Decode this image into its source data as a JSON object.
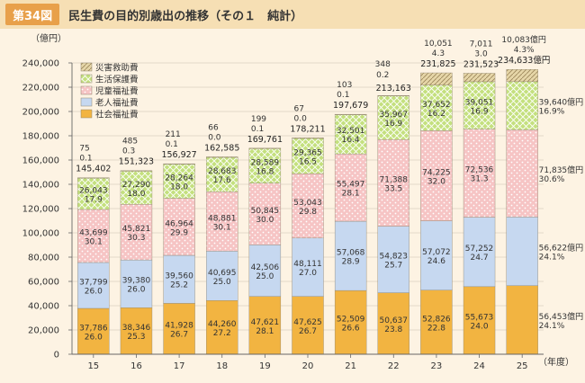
{
  "figure": {
    "badge": "第34図",
    "title": "民生費の目的別歳出の推移（その１　純計）"
  },
  "chart_data": {
    "type": "bar",
    "stacked": true,
    "y_unit_label": "（億円）",
    "x_unit_label": "（年度）",
    "ylim": [
      0,
      240000
    ],
    "yticks": [
      0,
      20000,
      40000,
      60000,
      80000,
      100000,
      120000,
      140000,
      160000,
      180000,
      200000,
      220000,
      240000
    ],
    "ytick_labels": [
      "0",
      "20,000",
      "40,000",
      "60,000",
      "80,000",
      "100,000",
      "120,000",
      "140,000",
      "160,000",
      "180,000",
      "200,000",
      "220,000",
      "240,000"
    ],
    "categories": [
      "15",
      "16",
      "17",
      "18",
      "19",
      "20",
      "21",
      "22",
      "23",
      "24",
      "25"
    ],
    "series": [
      {
        "name": "社会福祉費",
        "color": "#f2b441",
        "values": [
          37786,
          38346,
          41928,
          44260,
          47621,
          47625,
          52509,
          50637,
          52826,
          55673,
          56453
        ],
        "labels": [
          "37,786",
          "38,346",
          "41,928",
          "44,260",
          "47,621",
          "47,625",
          "52,509",
          "50,637",
          "52,826",
          "55,673",
          "56,453億円"
        ],
        "pcts": [
          "26.0",
          "25.3",
          "26.7",
          "27.2",
          "28.1",
          "26.7",
          "26.6",
          "23.8",
          "22.8",
          "24.0",
          "24.1%"
        ]
      },
      {
        "name": "老人福祉費",
        "color": "#c6d8f0",
        "values": [
          37799,
          39380,
          39560,
          40695,
          42506,
          48111,
          57068,
          54823,
          57072,
          57252,
          56622
        ],
        "labels": [
          "37,799",
          "39,380",
          "39,560",
          "40,695",
          "42,506",
          "48,111",
          "57,068",
          "54,823",
          "57,072",
          "57,252",
          "56,622億円"
        ],
        "pcts": [
          "26.0",
          "26.0",
          "25.2",
          "25.0",
          "25.0",
          "27.0",
          "28.9",
          "25.7",
          "24.6",
          "24.7",
          "24.1%"
        ]
      },
      {
        "name": "児童福祉費",
        "color": "#f6c4c4",
        "values": [
          43699,
          45821,
          46964,
          48881,
          50845,
          53043,
          55497,
          71388,
          74225,
          72536,
          71835
        ],
        "labels": [
          "43,699",
          "45,821",
          "46,964",
          "48,881",
          "50,845",
          "53,043",
          "55,497",
          "71,388",
          "74,225",
          "72,536",
          "71,835億円"
        ],
        "pcts": [
          "30.1",
          "30.3",
          "29.9",
          "30.1",
          "30.0",
          "29.8",
          "28.1",
          "33.5",
          "32.0",
          "31.3",
          "30.6%"
        ]
      },
      {
        "name": "生活保護費",
        "color": "#c4e07e",
        "values": [
          26043,
          27290,
          28264,
          28683,
          28589,
          29365,
          32501,
          35967,
          37652,
          39051,
          39640
        ],
        "labels": [
          "26,043",
          "27,290",
          "28,264",
          "28,683",
          "28,589",
          "29,365",
          "32,501",
          "35,967",
          "37,652",
          "39,051",
          "39,640億円"
        ],
        "pcts": [
          "17.9",
          "18.0",
          "18.0",
          "17.6",
          "16.8",
          "16.5",
          "16.4",
          "16.9",
          "16.2",
          "16.9",
          "16.9%"
        ]
      },
      {
        "name": "災害救助費",
        "color": "#e6d6a8",
        "values": [
          75,
          485,
          211,
          66,
          199,
          67,
          103,
          348,
          10051,
          7011,
          10083
        ],
        "labels": [
          "75",
          "485",
          "211",
          "66",
          "199",
          "67",
          "103",
          "348",
          "10,051",
          "7,011",
          "10,083億円"
        ],
        "pcts": [
          "0.1",
          "0.3",
          "0.1",
          "0.0",
          "0.1",
          "0.0",
          "0.1",
          "0.2",
          "4.3",
          "3.0",
          "4.3%"
        ]
      }
    ],
    "totals": [
      145402,
      151323,
      156927,
      162585,
      169761,
      178211,
      197679,
      213163,
      231825,
      231523,
      234633
    ],
    "total_labels": [
      "145,402",
      "151,323",
      "156,927",
      "162,585",
      "169,761",
      "178,211",
      "197,679",
      "213,163",
      "231,825",
      "231,523",
      "234,633億円"
    ],
    "legend_order": [
      "災害救助費",
      "生活保護費",
      "児童福祉費",
      "老人福祉費",
      "社会福祉費"
    ]
  }
}
